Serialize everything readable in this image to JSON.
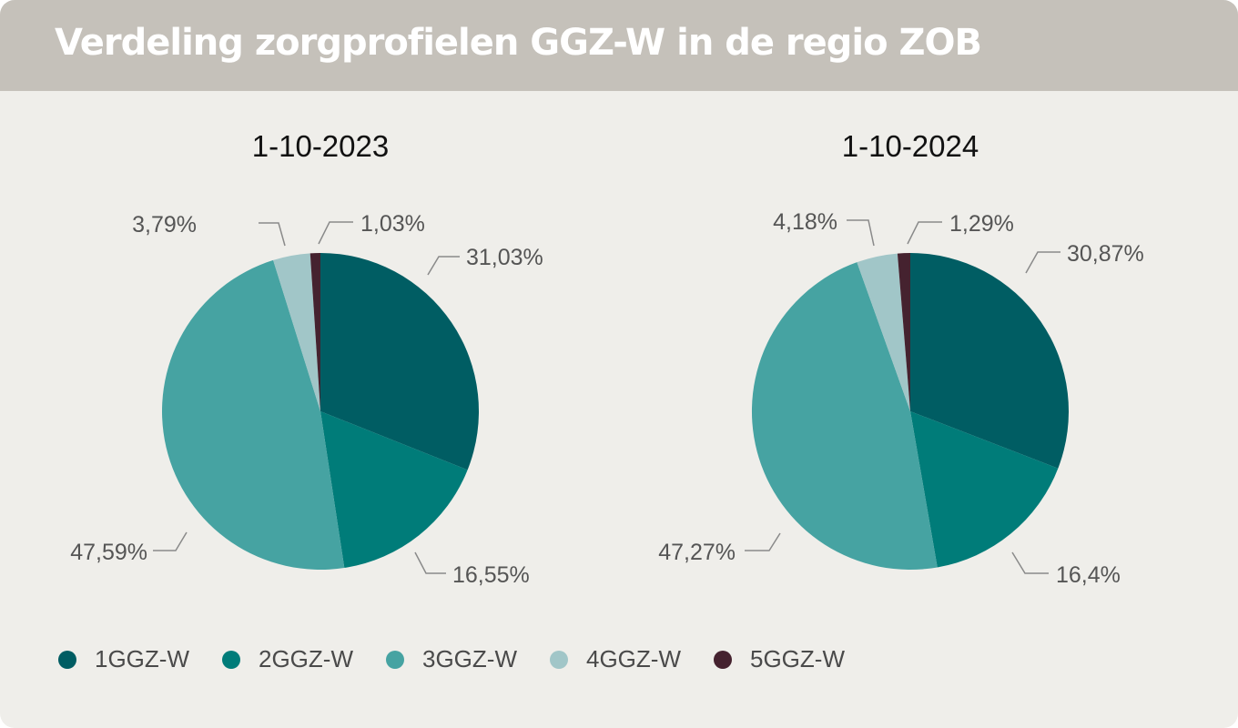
{
  "header": {
    "title": "Verdeling zorgprofielen GGZ-W in de regio ZOB"
  },
  "colors": {
    "header_bg": "#c5c1ba",
    "card_bg": "#efeeea",
    "label_text": "#555555",
    "leader": "#8a8a8a"
  },
  "legend": [
    {
      "label": "1GGZ-W",
      "color": "#005d63"
    },
    {
      "label": "2GGZ-W",
      "color": "#007c79"
    },
    {
      "label": "3GGZ-W",
      "color": "#46a3a2"
    },
    {
      "label": "4GGZ-W",
      "color": "#a1c6c8"
    },
    {
      "label": "5GGZ-W",
      "color": "#45222f"
    }
  ],
  "chart_data": [
    {
      "type": "pie",
      "title": "1-10-2023",
      "categories": [
        "1GGZ-W",
        "2GGZ-W",
        "3GGZ-W",
        "4GGZ-W",
        "5GGZ-W"
      ],
      "values": [
        31.03,
        16.55,
        47.59,
        3.79,
        1.03
      ],
      "labels": [
        "31,03%",
        "16,55%",
        "47,59%",
        "3,79%",
        "1,03%"
      ]
    },
    {
      "type": "pie",
      "title": "1-10-2024",
      "categories": [
        "1GGZ-W",
        "2GGZ-W",
        "3GGZ-W",
        "4GGZ-W",
        "5GGZ-W"
      ],
      "values": [
        30.87,
        16.4,
        47.27,
        4.18,
        1.29
      ],
      "labels": [
        "30,87%",
        "16,4%",
        "47,27%",
        "4,18%",
        "1,29%"
      ]
    }
  ]
}
